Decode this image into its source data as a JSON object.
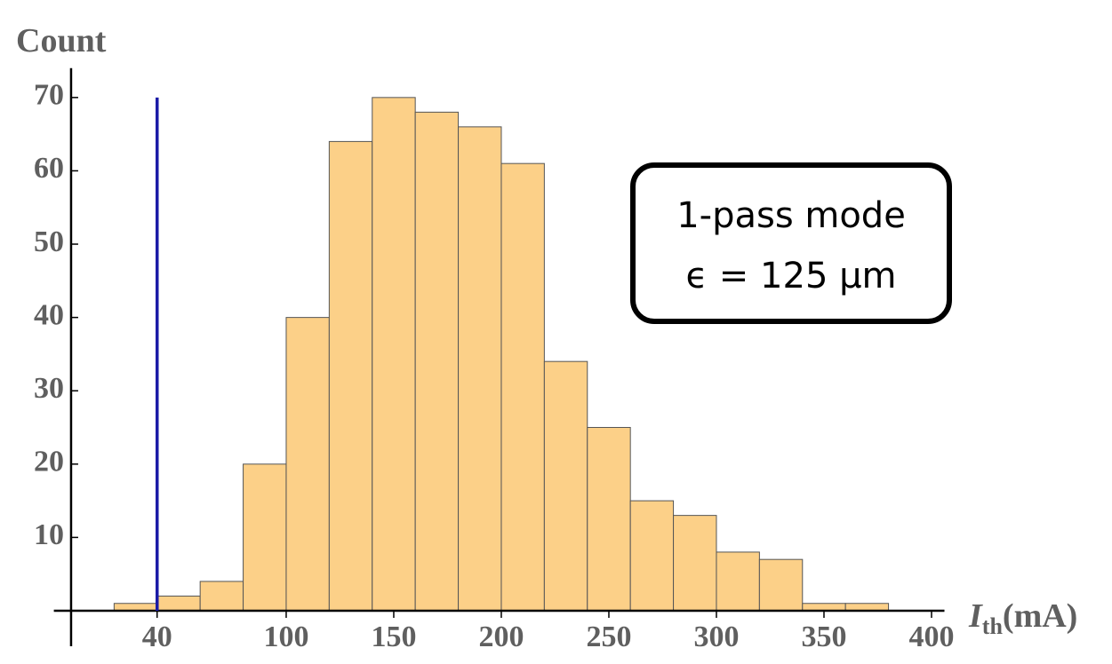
{
  "chart_data": {
    "type": "histogram",
    "y_label": "Count",
    "x_label": {
      "symbol": "I",
      "subscript": "th",
      "unit": "(mA)"
    },
    "bins": [
      20,
      40,
      60,
      80,
      100,
      120,
      140,
      160,
      180,
      200,
      220,
      240,
      260,
      280,
      300,
      320,
      340,
      360,
      380
    ],
    "values": [
      1,
      2,
      4,
      20,
      40,
      64,
      70,
      68,
      66,
      61,
      34,
      25,
      15,
      13,
      8,
      7,
      1,
      1
    ],
    "color": "#fcd088",
    "edge_color": "#555555",
    "xlim": [
      -8,
      406
    ],
    "ylim": [
      0,
      74
    ],
    "xticks": [
      40,
      100,
      150,
      200,
      250,
      300,
      350,
      400
    ],
    "yticks": [
      10,
      20,
      30,
      40,
      50,
      60,
      70
    ],
    "threshold": {
      "x": 40,
      "y": 70,
      "color": "#1a1aa6"
    },
    "annotation": [
      "1-pass mode",
      "ϵ = 125 μm"
    ]
  }
}
